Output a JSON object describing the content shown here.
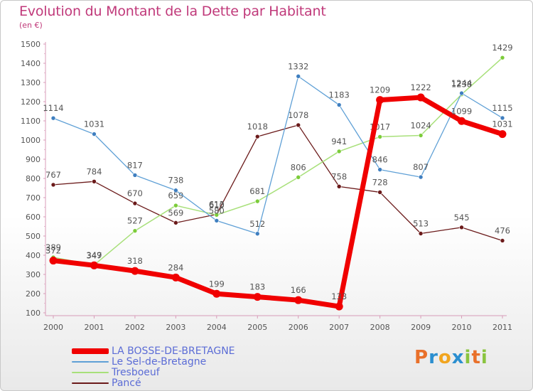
{
  "chart_data": {
    "type": "line",
    "title": "Evolution du Montant de la Dette par Habitant",
    "unit_label": "(en €)",
    "x": [
      "2000",
      "2001",
      "2002",
      "2003",
      "2004",
      "2005",
      "2006",
      "2007",
      "2008",
      "2009",
      "2010",
      "2011"
    ],
    "ylim": [
      100,
      1500
    ],
    "yticks": [
      100,
      200,
      300,
      400,
      500,
      600,
      700,
      800,
      900,
      1000,
      1100,
      1200,
      1300,
      1400,
      1500
    ],
    "grid": false,
    "legend_position": "bottom-left",
    "series": [
      {
        "name": "Pancé",
        "color": "#6b1a1a",
        "width": 1.3,
        "marker": "#6b1a1a",
        "values": [
          767,
          784,
          670,
          569,
          613,
          1018,
          1078,
          758,
          728,
          513,
          545,
          476
        ]
      },
      {
        "name": "Tresboeuf",
        "color": "#a8e07a",
        "width": 1.5,
        "marker": "#7ccc3a",
        "values": [
          389,
          349,
          527,
          659,
          610,
          681,
          806,
          941,
          1017,
          1024,
          1238,
          1429
        ]
      },
      {
        "name": "Le Sel-de-Bretagne",
        "color": "#5fa0d6",
        "width": 1.3,
        "marker": "#3f7fc0",
        "values": [
          1114,
          1031,
          817,
          738,
          580,
          512,
          1332,
          1183,
          846,
          807,
          1244,
          1115
        ]
      },
      {
        "name": "LA BOSSE-DE-BRETAGNE",
        "color": "#f00000",
        "width": 7,
        "marker": "#f00000",
        "values": [
          372,
          347,
          318,
          284,
          199,
          183,
          166,
          133,
          1209,
          1222,
          1099,
          1031
        ]
      }
    ]
  },
  "legend": [
    {
      "label": "LA BOSSE-DE-BRETAGNE",
      "color": "#f00000",
      "thickness": 8
    },
    {
      "label": "Le Sel-de-Bretagne",
      "color": "#5fa0d6",
      "thickness": 2
    },
    {
      "label": "Tresboeuf",
      "color": "#a8e07a",
      "thickness": 2
    },
    {
      "label": "Pancé",
      "color": "#6b1a1a",
      "thickness": 2
    }
  ],
  "logo": {
    "letters": [
      "P",
      "r",
      "o",
      "x",
      "i",
      "t",
      "i"
    ],
    "colors": [
      "#e9702a",
      "#2b8fd0",
      "#f1a51f",
      "#2b8fd0",
      "#8ac43f",
      "#e9702a",
      "#8ac43f"
    ]
  }
}
